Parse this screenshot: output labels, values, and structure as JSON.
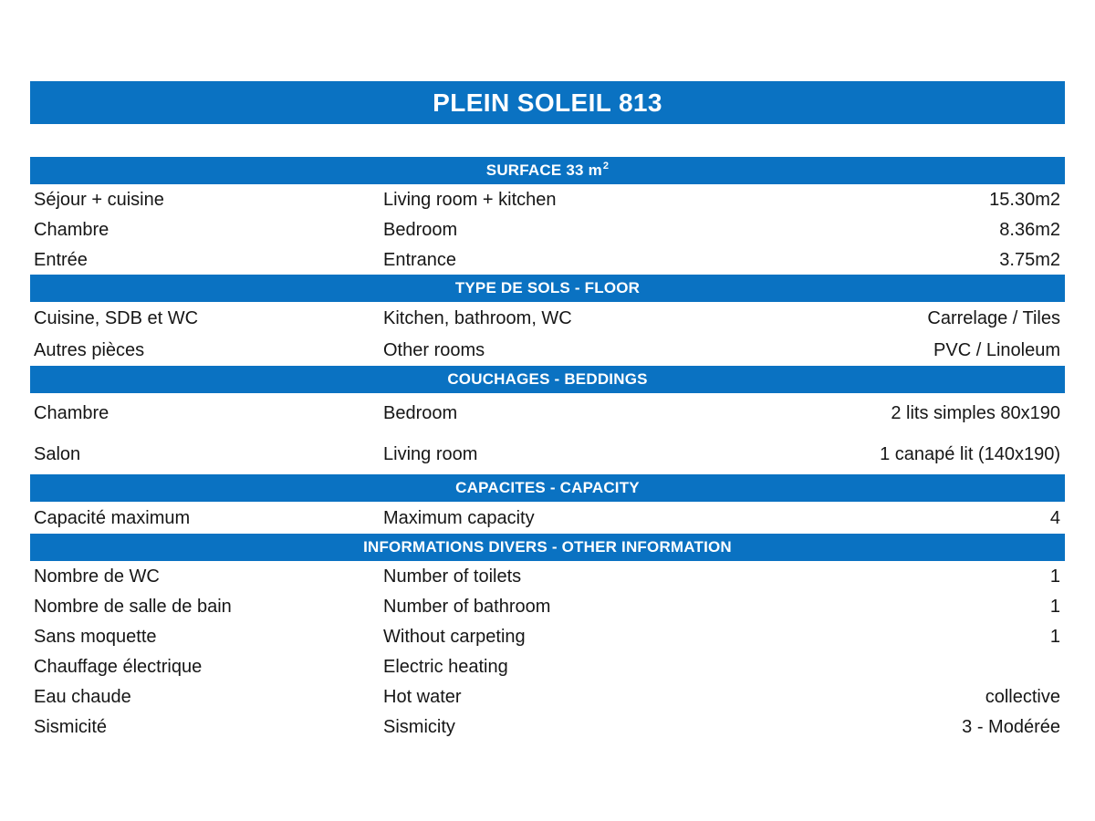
{
  "accent_color": "#0a72c2",
  "text_color": "#161616",
  "title": "PLEIN SOLEIL 813",
  "sections": [
    {
      "header": "SURFACE 33 m",
      "header_sup": "2",
      "rows": [
        {
          "fr": "Séjour + cuisine",
          "en": "Living room + kitchen",
          "value": "15.30m2"
        },
        {
          "fr": "Chambre",
          "en": "Bedroom",
          "value": "8.36m2"
        },
        {
          "fr": "Entrée",
          "en": "Entrance",
          "value": "3.75m2"
        }
      ]
    },
    {
      "header": "TYPE DE SOLS - FLOOR",
      "rows": [
        {
          "fr": "Cuisine, SDB et WC",
          "en": "Kitchen, bathroom, WC",
          "value": "Carrelage / Tiles"
        },
        {
          "fr": "Autres pièces",
          "en": "Other rooms",
          "value": "PVC / Linoleum"
        }
      ]
    },
    {
      "header": "COUCHAGES - BEDDINGS",
      "rows": [
        {
          "fr": "Chambre",
          "en": "Bedroom",
          "value": "2 lits simples 80x190"
        },
        {
          "fr": "Salon",
          "en": "Living room",
          "value": "1 canapé lit (140x190)"
        }
      ]
    },
    {
      "header": "CAPACITES - CAPACITY",
      "rows": [
        {
          "fr": "Capacité maximum",
          "en": "Maximum capacity",
          "value": "4"
        }
      ]
    },
    {
      "header": "INFORMATIONS DIVERS - OTHER INFORMATION",
      "rows": [
        {
          "fr": "Nombre de WC",
          "en": "Number of toilets",
          "value": "1"
        },
        {
          "fr": "Nombre de salle de bain",
          "en": "Number of bathroom",
          "value": "1"
        },
        {
          "fr": "Sans moquette",
          "en": "Without carpeting",
          "value": "1"
        },
        {
          "fr": "Chauffage électrique",
          "en": "Electric heating",
          "value": ""
        },
        {
          "fr": "Eau chaude",
          "en": "Hot water",
          "value": "collective"
        },
        {
          "fr": "Sismicité",
          "en": "Sismicity",
          "value": "3 - Modérée"
        }
      ]
    }
  ]
}
